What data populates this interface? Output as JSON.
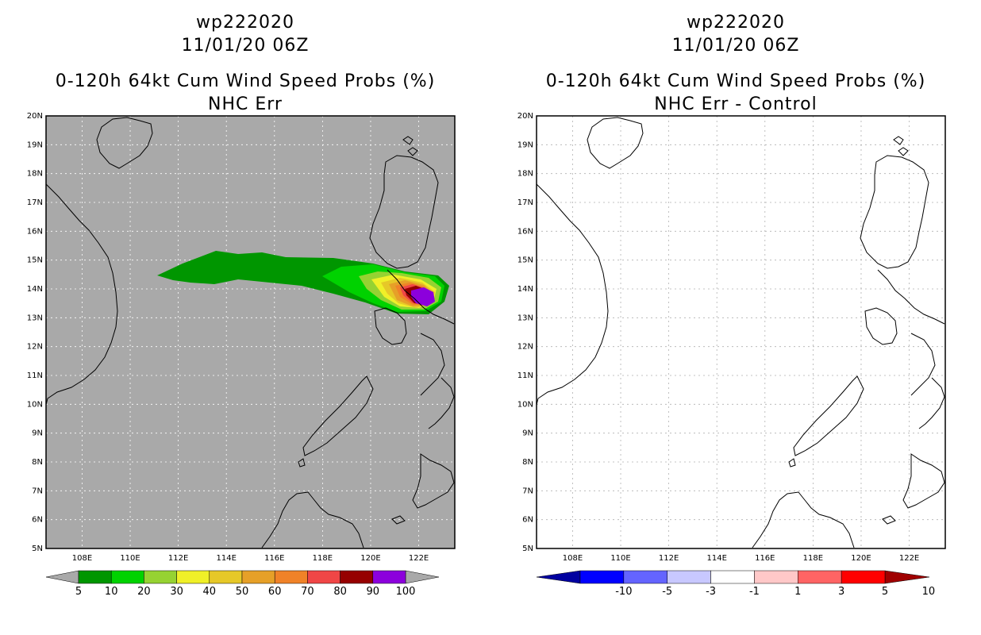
{
  "left_panel": {
    "title_line1": "wp222020",
    "title_line2": "11/01/20 06Z",
    "title_line3": "0-120h 64kt Cum Wind Speed Probs (%)",
    "title_line4": "NHC Err",
    "background_color": "#a9a9a9",
    "colorbar": {
      "labels": [
        "5",
        "10",
        "20",
        "30",
        "40",
        "50",
        "60",
        "70",
        "80",
        "90",
        "100"
      ],
      "colors": [
        "#009600",
        "#00d200",
        "#96d232",
        "#f0f028",
        "#e6c828",
        "#e6a028",
        "#f08228",
        "#f04646",
        "#960000",
        "#8c00dc"
      ]
    }
  },
  "right_panel": {
    "title_line1": "wp222020",
    "title_line2": "11/01/20 06Z",
    "title_line3": "0-120h 64kt Cum Wind Speed Probs (%)",
    "title_line4": "NHC Err - Control",
    "background_color": "#ffffff",
    "colorbar": {
      "labels": [
        "-10",
        "-5",
        "-3",
        "-1",
        "1",
        "3",
        "5",
        "10"
      ],
      "colors": [
        "#0000a0",
        "#0000ff",
        "#6464ff",
        "#c8c8ff",
        "#ffffff",
        "#ffc8c8",
        "#ff6464",
        "#ff0000",
        "#a00000"
      ]
    }
  },
  "map": {
    "lat_labels": [
      "20N",
      "19N",
      "18N",
      "17N",
      "16N",
      "15N",
      "14N",
      "13N",
      "12N",
      "11N",
      "10N",
      "9N",
      "8N",
      "7N",
      "6N",
      "5N"
    ],
    "lon_labels": [
      "108E",
      "110E",
      "112E",
      "114E",
      "116E",
      "118E",
      "120E",
      "122E"
    ]
  }
}
